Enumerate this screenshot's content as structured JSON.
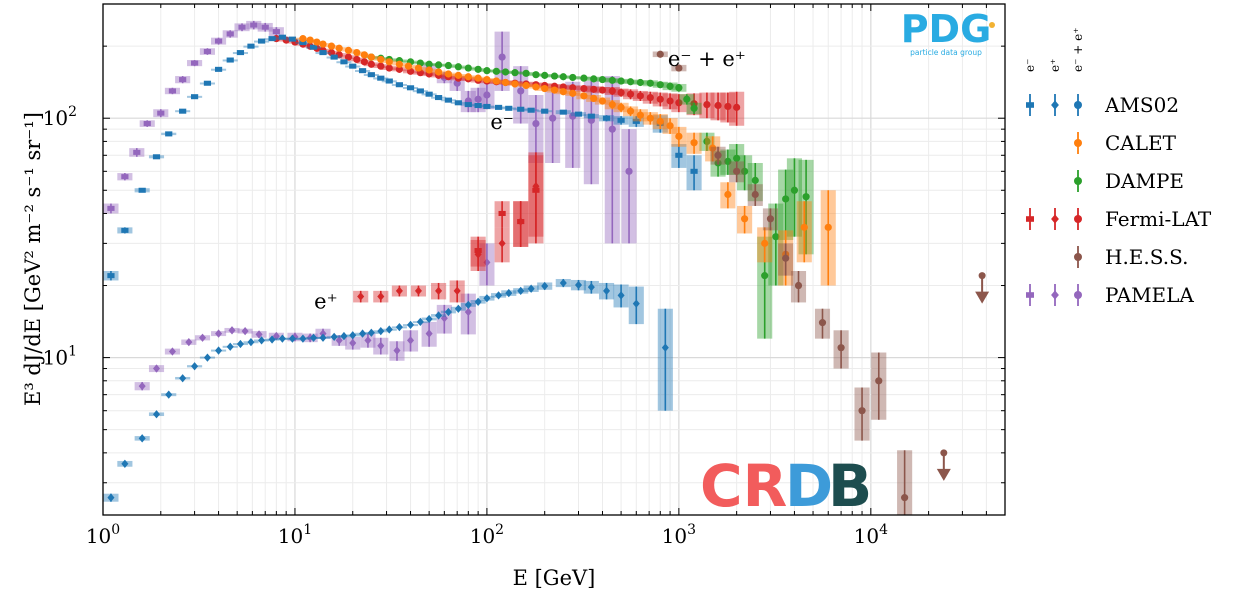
{
  "chart_data": {
    "type": "scatter",
    "xlabel": "E [GeV]",
    "ylabel": "E³ dJ/dE [GeV² m⁻² s⁻¹ sr⁻¹]",
    "xscale": "log",
    "yscale": "log",
    "xlim": [
      1,
      50000
    ],
    "ylim": [
      2.2,
      300
    ],
    "grid": true,
    "x_ticks": [
      {
        "value": 1,
        "base": "10",
        "exp": "0"
      },
      {
        "value": 10,
        "base": "10",
        "exp": "1"
      },
      {
        "value": 100,
        "base": "10",
        "exp": "2"
      },
      {
        "value": 1000,
        "base": "10",
        "exp": "3"
      },
      {
        "value": 10000,
        "base": "10",
        "exp": "4"
      }
    ],
    "y_ticks": [
      {
        "value": 10,
        "base": "10",
        "exp": "1"
      },
      {
        "value": 100,
        "base": "10",
        "exp": "2"
      }
    ],
    "annotations": [
      {
        "text": "e⁻ + e⁺",
        "x": 1400,
        "y": 165
      },
      {
        "text": "e⁻",
        "x": 120,
        "y": 90
      },
      {
        "text": "e⁺",
        "x": 14.5,
        "y": 16
      }
    ],
    "logos": {
      "pdg": "PDG",
      "pdg_sub": "particle data group",
      "crdb": "CRDB"
    },
    "legend": {
      "placement": "right",
      "column_headers": [
        "e⁻",
        "e⁺",
        "e⁻ + e⁺"
      ],
      "entries": [
        {
          "name": "AMS02",
          "markers": [
            "e-",
            "e+",
            "all"
          ]
        },
        {
          "name": "CALET",
          "markers": [
            "all"
          ]
        },
        {
          "name": "DAMPE",
          "markers": [
            "all"
          ]
        },
        {
          "name": "Fermi-LAT",
          "markers": [
            "e-",
            "e+",
            "all"
          ]
        },
        {
          "name": "H.E.S.S.",
          "markers": [
            "all"
          ]
        },
        {
          "name": "PAMELA",
          "markers": [
            "e-",
            "e+",
            "all"
          ]
        }
      ]
    },
    "series": [
      {
        "name": "AMS02",
        "particle": "e-",
        "color": "#1f77b4",
        "marker": "square",
        "x": [
          1.1,
          1.3,
          1.6,
          1.9,
          2.2,
          2.6,
          3.0,
          3.5,
          4.0,
          4.6,
          5.2,
          5.9,
          6.7,
          7.6,
          8.6,
          9.7,
          11,
          12.5,
          14,
          16,
          18,
          20,
          22.5,
          25,
          28,
          31,
          35,
          40,
          45,
          50,
          56,
          63,
          71,
          80,
          90,
          100,
          115,
          130,
          150,
          170,
          200,
          250,
          300,
          350,
          420,
          500,
          600,
          800,
          1000,
          1200
        ],
        "y": [
          22,
          34,
          50,
          69,
          86,
          107,
          123,
          140,
          160,
          175,
          188,
          200,
          210,
          215,
          218,
          214,
          207,
          198,
          188,
          180,
          172,
          165,
          158,
          152,
          147,
          143,
          138,
          134,
          130,
          126,
          122,
          119,
          116,
          114,
          113,
          112,
          111,
          110,
          109,
          108,
          107,
          106,
          104,
          102,
          100,
          98,
          97,
          95,
          70,
          60
        ],
        "yerr": [
          1,
          1,
          1,
          1,
          1,
          1,
          1,
          1,
          1,
          1,
          1,
          1,
          1,
          1,
          1,
          1,
          1,
          1,
          1,
          1,
          1,
          1,
          1,
          1,
          1,
          1,
          1,
          1,
          1,
          1,
          1,
          1,
          1,
          1,
          1,
          1,
          1,
          1,
          1,
          1,
          1,
          2,
          2,
          2,
          3,
          4,
          5,
          8,
          8,
          10
        ]
      },
      {
        "name": "AMS02",
        "particle": "e+",
        "color": "#1f77b4",
        "marker": "diamond",
        "x": [
          1.1,
          1.3,
          1.6,
          1.9,
          2.2,
          2.6,
          3.0,
          3.5,
          4.0,
          4.6,
          5.2,
          5.9,
          6.7,
          7.6,
          8.6,
          9.7,
          11,
          12.5,
          14,
          16,
          18,
          20,
          22.5,
          25,
          28,
          31,
          35,
          40,
          45,
          50,
          56,
          63,
          71,
          80,
          90,
          100,
          115,
          130,
          150,
          170,
          200,
          250,
          300,
          350,
          420,
          500,
          600,
          850
        ],
        "y": [
          2.6,
          3.6,
          4.6,
          5.8,
          7.0,
          8.2,
          9.2,
          10.0,
          10.7,
          11.1,
          11.4,
          11.6,
          11.8,
          11.9,
          12.0,
          12.0,
          12.0,
          12.1,
          12.1,
          12.2,
          12.3,
          12.4,
          12.6,
          12.7,
          12.9,
          13.1,
          13.4,
          13.7,
          14.1,
          14.5,
          15.0,
          15.5,
          16.0,
          16.6,
          17.1,
          17.7,
          18.2,
          18.6,
          19.0,
          19.4,
          19.9,
          20.5,
          20.1,
          19.7,
          19.0,
          18.2,
          16.8,
          11
        ],
        "yerr": [
          0.1,
          0.1,
          0.1,
          0.1,
          0.1,
          0.1,
          0.1,
          0.1,
          0.1,
          0.1,
          0.1,
          0.1,
          0.1,
          0.1,
          0.1,
          0.1,
          0.1,
          0.1,
          0.1,
          0.1,
          0.1,
          0.1,
          0.1,
          0.1,
          0.1,
          0.1,
          0.1,
          0.1,
          0.1,
          0.2,
          0.2,
          0.2,
          0.3,
          0.3,
          0.3,
          0.4,
          0.4,
          0.5,
          0.5,
          0.6,
          0.7,
          0.8,
          1.0,
          1.2,
          1.5,
          2,
          3,
          5
        ]
      },
      {
        "name": "CALET",
        "particle": "all",
        "color": "#ff7f0e",
        "marker": "circle",
        "x": [
          11,
          12,
          13,
          14,
          15.5,
          17,
          19,
          21,
          23,
          25,
          28,
          31,
          35,
          39,
          44,
          50,
          56,
          63,
          71,
          80,
          90,
          100,
          112,
          125,
          140,
          160,
          180,
          200,
          225,
          250,
          280,
          320,
          360,
          400,
          450,
          500,
          560,
          630,
          710,
          800,
          900,
          1000,
          1200,
          1500,
          1800,
          2200,
          2800,
          3600,
          4500,
          6000
        ],
        "y": [
          215,
          212,
          208,
          204,
          200,
          196,
          192,
          188,
          184,
          180,
          176,
          172,
          168,
          165,
          162,
          159,
          156,
          153,
          151,
          149,
          147,
          145,
          143,
          141,
          139,
          137,
          135,
          133,
          131,
          129,
          127,
          124,
          121,
          118,
          114,
          111,
          107,
          103,
          100,
          97,
          93,
          84,
          79,
          75,
          48,
          38,
          30,
          27,
          35,
          35
        ],
        "yerr": [
          2,
          2,
          2,
          2,
          2,
          2,
          2,
          2,
          2,
          2,
          2,
          2,
          2,
          2,
          2,
          2,
          2,
          2,
          2,
          2,
          2,
          2,
          2,
          2,
          2,
          2,
          2,
          3,
          3,
          3,
          3,
          4,
          4,
          4,
          5,
          5,
          5,
          6,
          6,
          7,
          7,
          8,
          8,
          9,
          6,
          5,
          5,
          7,
          10,
          15
        ]
      },
      {
        "name": "DAMPE",
        "particle": "all",
        "color": "#2ca02c",
        "marker": "circle",
        "x": [
          25,
          28,
          31,
          35,
          40,
          45,
          50,
          56,
          63,
          71,
          80,
          90,
          100,
          112,
          125,
          140,
          160,
          180,
          200,
          225,
          250,
          280,
          320,
          360,
          400,
          450,
          500,
          560,
          630,
          710,
          800,
          900,
          1000,
          1100,
          1200,
          1400,
          1600,
          1800,
          2000,
          2200,
          2500,
          2800,
          3200,
          3600,
          4000,
          4600
        ],
        "y": [
          180,
          178,
          176,
          174,
          172,
          170,
          168,
          167,
          166,
          164,
          162,
          160,
          158,
          157,
          156,
          155,
          154,
          152,
          151,
          150,
          149,
          148,
          147,
          146,
          145,
          144,
          143,
          142,
          141,
          140,
          138,
          136,
          134,
          120,
          110,
          80,
          65,
          66,
          68,
          60,
          55,
          22,
          32,
          46,
          50,
          47
        ],
        "yerr": [
          2,
          2,
          2,
          2,
          2,
          2,
          2,
          2,
          2,
          2,
          2,
          2,
          2,
          2,
          2,
          2,
          2,
          2,
          2,
          2,
          2,
          2,
          2,
          3,
          3,
          3,
          3,
          3,
          3,
          4,
          4,
          5,
          5,
          6,
          6,
          7,
          8,
          8,
          10,
          10,
          10,
          10,
          12,
          15,
          18,
          20
        ]
      },
      {
        "name": "Fermi-LAT",
        "particle": "e-",
        "color": "#d62728",
        "marker": "square",
        "x": [
          90,
          120,
          150,
          180
        ],
        "y": [
          28,
          40,
          37,
          50
        ],
        "yerr": [
          4,
          5,
          8,
          20
        ]
      },
      {
        "name": "Fermi-LAT",
        "particle": "e+",
        "color": "#d62728",
        "marker": "diamond",
        "x": [
          22,
          28,
          35,
          44,
          56,
          70,
          90,
          120,
          150,
          180
        ],
        "y": [
          18,
          18,
          19,
          19,
          19,
          19,
          27,
          30,
          37,
          52
        ],
        "yerr": [
          1,
          1,
          1,
          1,
          1.5,
          2,
          4,
          5,
          8,
          20
        ]
      },
      {
        "name": "Fermi-LAT",
        "particle": "all",
        "color": "#d62728",
        "marker": "circle",
        "x": [
          8,
          9,
          10,
          11,
          12,
          13,
          14,
          15.5,
          17,
          19,
          21,
          23,
          25,
          28,
          31,
          35,
          40,
          45,
          50,
          56,
          63,
          71,
          80,
          90,
          100,
          112,
          125,
          140,
          160,
          180,
          200,
          225,
          250,
          280,
          320,
          360,
          400,
          450,
          500,
          560,
          630,
          710,
          800,
          900,
          1000,
          1200,
          1400,
          1600,
          1800,
          2000
        ],
        "y": [
          215,
          212,
          208,
          204,
          200,
          196,
          192,
          188,
          184,
          180,
          176,
          172,
          168,
          165,
          162,
          160,
          157,
          155,
          153,
          151,
          149,
          147,
          146,
          144,
          143,
          142,
          141,
          140,
          139,
          138,
          137,
          136,
          135,
          134,
          133,
          132,
          131,
          130,
          128,
          126,
          124,
          122,
          120,
          118,
          116,
          115,
          114,
          113,
          112,
          111
        ],
        "yerr": [
          3,
          3,
          3,
          3,
          3,
          3,
          3,
          3,
          3,
          3,
          3,
          3,
          3,
          3,
          3,
          3,
          3,
          3,
          3,
          3,
          3,
          3,
          3,
          3,
          3,
          3,
          3,
          3,
          3,
          3,
          3,
          3,
          3,
          3,
          4,
          4,
          4,
          5,
          5,
          6,
          6,
          7,
          8,
          9,
          10,
          12,
          14,
          15,
          16,
          18
        ]
      },
      {
        "name": "H.E.S.S.",
        "particle": "all",
        "color": "#8c564b",
        "marker": "circle",
        "x": [
          800,
          1000,
          1600,
          2000,
          2500,
          3000,
          3600,
          4200,
          5600,
          7000,
          9000,
          11000,
          15000,
          24000,
          38000
        ],
        "y": [
          185,
          162,
          70,
          60,
          48,
          38,
          26,
          20,
          14,
          11,
          6,
          8,
          2.6,
          4.0,
          22
        ],
        "yerr": [
          5,
          5,
          6,
          6,
          5,
          4,
          4,
          3,
          2,
          2,
          1.5,
          2.5,
          1.5,
          0,
          0
        ],
        "upper_limit": [
          false,
          false,
          false,
          false,
          false,
          false,
          false,
          false,
          false,
          false,
          false,
          false,
          false,
          true,
          true
        ]
      },
      {
        "name": "PAMELA",
        "particle": "e-",
        "color": "#9467bd",
        "marker": "square",
        "x": [
          1.1,
          1.3,
          1.5,
          1.7,
          2.0,
          2.3,
          2.6,
          3.0,
          3.5,
          4.0,
          4.6,
          5.3,
          6.1,
          7.0,
          8.0
        ],
        "y": [
          42,
          57,
          72,
          95,
          105,
          130,
          145,
          170,
          190,
          210,
          225,
          240,
          245,
          240,
          230
        ],
        "yerr": [
          2,
          2,
          3,
          3,
          4,
          4,
          5,
          5,
          6,
          7,
          8,
          9,
          10,
          10,
          10
        ]
      },
      {
        "name": "PAMELA",
        "particle": "e+",
        "color": "#9467bd",
        "marker": "diamond",
        "x": [
          1.6,
          1.9,
          2.3,
          2.8,
          3.3,
          4.0,
          4.7,
          5.5,
          6.5,
          8.0,
          10,
          12,
          14,
          17,
          20,
          24,
          28,
          34,
          40,
          50,
          60,
          80,
          100
        ],
        "y": [
          7.6,
          9.0,
          10.6,
          11.6,
          12.1,
          12.6,
          13.0,
          12.9,
          12.5,
          12.3,
          12.2,
          12.1,
          12.6,
          11.8,
          11.5,
          11.8,
          11.2,
          10.7,
          11.8,
          12.6,
          14.6,
          15.5,
          25
        ],
        "yerr": [
          0.3,
          0.3,
          0.3,
          0.3,
          0.3,
          0.3,
          0.3,
          0.3,
          0.4,
          0.4,
          0.5,
          0.5,
          0.6,
          0.6,
          0.7,
          0.8,
          0.9,
          1,
          1.2,
          1.5,
          2,
          3,
          5
        ]
      },
      {
        "name": "PAMELA",
        "particle": "all",
        "color": "#9467bd",
        "marker": "circle",
        "x": [
          50,
          60,
          70,
          80,
          90,
          100,
          120,
          150,
          180,
          220,
          280,
          350,
          450,
          550
        ],
        "y": [
          160,
          148,
          140,
          118,
          120,
          125,
          180,
          130,
          95,
          100,
          102,
          98,
          90,
          60
        ],
        "yerr": [
          8,
          8,
          10,
          12,
          14,
          16,
          50,
          35,
          30,
          35,
          40,
          45,
          60,
          30
        ]
      }
    ]
  }
}
